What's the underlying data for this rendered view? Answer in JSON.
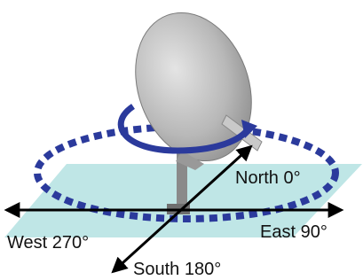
{
  "labels": {
    "north": "North 0°",
    "east": "East 90°",
    "west": "West 270°",
    "south": "South 180°"
  }
}
